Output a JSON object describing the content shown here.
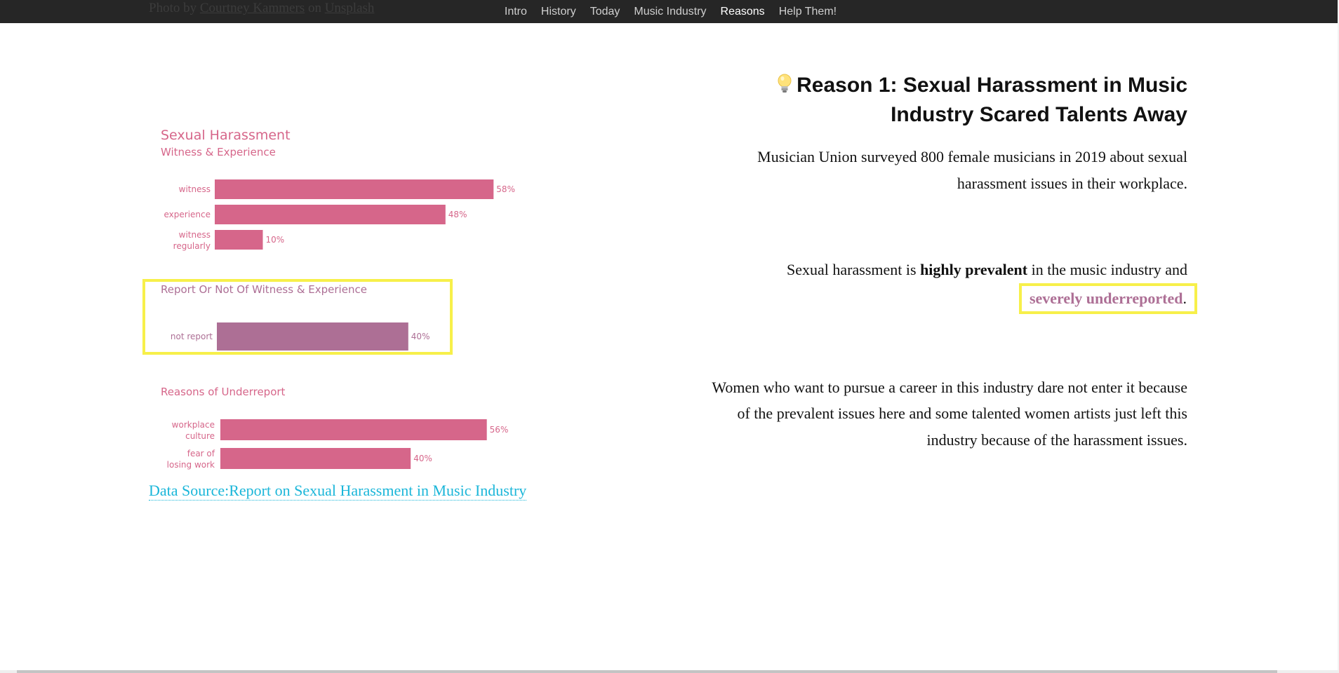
{
  "photo_credit": {
    "prefix": "Photo by ",
    "author": "Courtney Kammers",
    "middle": " on ",
    "site": "Unsplash"
  },
  "nav": {
    "items": [
      "Intro",
      "History",
      "Today",
      "Music Industry",
      "Reasons",
      "Help Them!"
    ],
    "active": "Reasons"
  },
  "chart_data": [
    {
      "type": "bar",
      "orientation": "horizontal",
      "title": "Sexual Harassment",
      "subtitle": "Witness & Experience",
      "categories": [
        "witness",
        "experience",
        "witness regularly"
      ],
      "values": [
        58,
        48,
        10
      ],
      "data_labels": [
        "58%",
        "48%",
        "10%"
      ],
      "unit": "%",
      "color": "#d6668a",
      "xlim": [
        0,
        100
      ]
    },
    {
      "type": "bar",
      "orientation": "horizontal",
      "title": "Report Or Not Of Witness & Experience",
      "categories": [
        "not report"
      ],
      "values": [
        40
      ],
      "data_labels": [
        "40%"
      ],
      "unit": "%",
      "color": "#ad6f95",
      "xlim": [
        0,
        100
      ]
    },
    {
      "type": "bar",
      "orientation": "horizontal",
      "title": "Reasons of Underreport",
      "categories": [
        "workplace culture",
        "fear of losing work"
      ],
      "values": [
        56,
        40
      ],
      "data_labels": [
        "56%",
        "40%"
      ],
      "unit": "%",
      "color": "#d6668a",
      "xlim": [
        0,
        100
      ]
    }
  ],
  "source": {
    "label": "Data Source:Report on Sexual Harassment in Music Industry"
  },
  "content": {
    "title": "Reason 1: Sexual Harassment in Music Industry Scared Talents Away",
    "title_icon": "lightbulb-icon",
    "para1": "Musician Union surveyed 800 female musicians in 2019 about sexual harassment issues in their workplace.",
    "para2_a": "Sexual harassment is ",
    "para2_bold": "highly prevalent",
    "para2_b": " in the music industry and ",
    "para2_emph": "severely underreported",
    "para2_end": ".",
    "para3": "Women who want to pursue a career in this industry dare not enter it because of the prevalent issues here and some talented women artists just left this industry because of the harassment issues."
  },
  "colors": {
    "pink": "#d6668a",
    "mauve": "#ad6f95",
    "highlight": "#f7f04a",
    "link": "#1ab6d9",
    "nav_bg": "#262626"
  }
}
